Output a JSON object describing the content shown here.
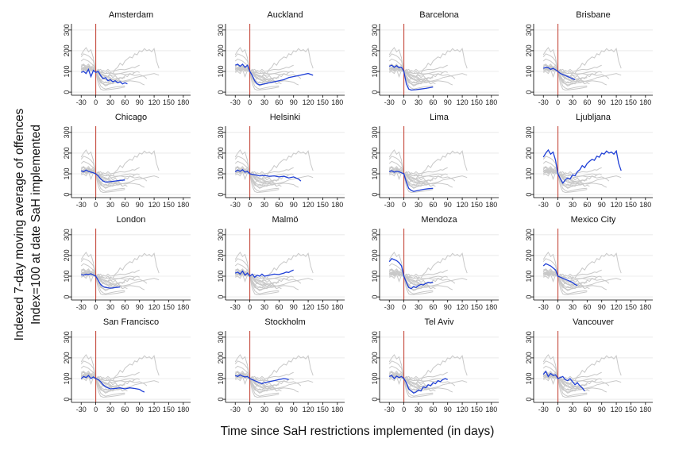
{
  "chart_data": {
    "type": "line",
    "layout": "small-multiples",
    "ylabel_lines": [
      "Indexed 7-day moving average of offences",
      "Index=100 at date SaH implemented"
    ],
    "xlabel": "Time since SaH restrictions implemented (in days)",
    "xlim": [
      -50,
      195
    ],
    "ylim": [
      -15,
      330
    ],
    "xticks": [
      -30,
      0,
      30,
      60,
      90,
      120,
      150,
      180
    ],
    "yticks": [
      0,
      100,
      200,
      300
    ],
    "ygrid": true,
    "vline_x": 0,
    "colors": {
      "highlight": "#1f3fd6",
      "background": "#c8c8c8",
      "vline": "#c0392b"
    },
    "cities": [
      {
        "name": "Amsterdam",
        "highlight": [
          [
            -30,
            95
          ],
          [
            -25,
            100
          ],
          [
            -20,
            90
          ],
          [
            -15,
            110
          ],
          [
            -10,
            75
          ],
          [
            -5,
            105
          ],
          [
            0,
            95
          ],
          [
            5,
            100
          ],
          [
            10,
            80
          ],
          [
            15,
            65
          ],
          [
            20,
            70
          ],
          [
            25,
            55
          ],
          [
            30,
            60
          ],
          [
            35,
            50
          ],
          [
            40,
            55
          ],
          [
            45,
            45
          ],
          [
            50,
            50
          ],
          [
            55,
            40
          ],
          [
            60,
            45
          ],
          [
            65,
            40
          ]
        ]
      },
      {
        "name": "Auckland",
        "highlight": [
          [
            -30,
            130
          ],
          [
            -25,
            135
          ],
          [
            -20,
            125
          ],
          [
            -15,
            135
          ],
          [
            -10,
            120
          ],
          [
            -5,
            130
          ],
          [
            0,
            100
          ],
          [
            5,
            80
          ],
          [
            10,
            55
          ],
          [
            15,
            40
          ],
          [
            20,
            35
          ],
          [
            30,
            40
          ],
          [
            40,
            45
          ],
          [
            50,
            50
          ],
          [
            60,
            55
          ],
          [
            70,
            60
          ],
          [
            80,
            70
          ],
          [
            90,
            75
          ],
          [
            100,
            80
          ],
          [
            110,
            85
          ],
          [
            120,
            90
          ],
          [
            130,
            82
          ]
        ]
      },
      {
        "name": "Barcelona",
        "highlight": [
          [
            -30,
            125
          ],
          [
            -25,
            130
          ],
          [
            -20,
            120
          ],
          [
            -15,
            128
          ],
          [
            -10,
            118
          ],
          [
            -5,
            120
          ],
          [
            0,
            100
          ],
          [
            5,
            40
          ],
          [
            10,
            15
          ],
          [
            15,
            10
          ],
          [
            25,
            12
          ],
          [
            35,
            15
          ],
          [
            45,
            18
          ],
          [
            55,
            22
          ],
          [
            60,
            25
          ]
        ]
      },
      {
        "name": "Brisbane",
        "highlight": [
          [
            -30,
            115
          ],
          [
            -25,
            120
          ],
          [
            -20,
            118
          ],
          [
            -15,
            110
          ],
          [
            -10,
            115
          ],
          [
            -5,
            108
          ],
          [
            0,
            100
          ],
          [
            5,
            90
          ],
          [
            10,
            85
          ],
          [
            15,
            80
          ],
          [
            20,
            75
          ],
          [
            25,
            70
          ],
          [
            30,
            65
          ],
          [
            35,
            60
          ]
        ]
      },
      {
        "name": "Chicago",
        "highlight": [
          [
            -30,
            115
          ],
          [
            -25,
            110
          ],
          [
            -20,
            118
          ],
          [
            -15,
            112
          ],
          [
            -10,
            108
          ],
          [
            -5,
            105
          ],
          [
            0,
            100
          ],
          [
            5,
            90
          ],
          [
            10,
            75
          ],
          [
            15,
            65
          ],
          [
            20,
            60
          ],
          [
            30,
            62
          ],
          [
            40,
            65
          ],
          [
            50,
            68
          ],
          [
            60,
            70
          ]
        ]
      },
      {
        "name": "Helsinki",
        "highlight": [
          [
            -30,
            110
          ],
          [
            -25,
            118
          ],
          [
            -20,
            112
          ],
          [
            -15,
            120
          ],
          [
            -10,
            108
          ],
          [
            -5,
            112
          ],
          [
            0,
            100
          ],
          [
            10,
            95
          ],
          [
            20,
            90
          ],
          [
            30,
            92
          ],
          [
            40,
            88
          ],
          [
            50,
            90
          ],
          [
            60,
            85
          ],
          [
            70,
            88
          ],
          [
            80,
            80
          ],
          [
            90,
            85
          ],
          [
            100,
            75
          ],
          [
            105,
            65
          ]
        ]
      },
      {
        "name": "Lima",
        "highlight": [
          [
            -30,
            110
          ],
          [
            -25,
            115
          ],
          [
            -20,
            108
          ],
          [
            -15,
            112
          ],
          [
            -10,
            110
          ],
          [
            -5,
            105
          ],
          [
            0,
            100
          ],
          [
            5,
            60
          ],
          [
            10,
            30
          ],
          [
            15,
            20
          ],
          [
            20,
            15
          ],
          [
            30,
            20
          ],
          [
            40,
            25
          ],
          [
            50,
            28
          ],
          [
            60,
            30
          ]
        ]
      },
      {
        "name": "Ljubljana",
        "highlight": [
          [
            -30,
            180
          ],
          [
            -25,
            200
          ],
          [
            -20,
            215
          ],
          [
            -15,
            195
          ],
          [
            -10,
            205
          ],
          [
            -5,
            165
          ],
          [
            0,
            100
          ],
          [
            5,
            75
          ],
          [
            10,
            55
          ],
          [
            15,
            70
          ],
          [
            20,
            80
          ],
          [
            25,
            75
          ],
          [
            30,
            95
          ],
          [
            35,
            90
          ],
          [
            40,
            110
          ],
          [
            45,
            120
          ],
          [
            50,
            140
          ],
          [
            55,
            130
          ],
          [
            60,
            150
          ],
          [
            65,
            160
          ],
          [
            70,
            170
          ],
          [
            75,
            165
          ],
          [
            80,
            185
          ],
          [
            85,
            180
          ],
          [
            90,
            200
          ],
          [
            95,
            195
          ],
          [
            100,
            210
          ],
          [
            105,
            200
          ],
          [
            110,
            205
          ],
          [
            115,
            195
          ],
          [
            120,
            210
          ],
          [
            125,
            150
          ],
          [
            130,
            115
          ]
        ]
      },
      {
        "name": "London",
        "highlight": [
          [
            -30,
            108
          ],
          [
            -25,
            105
          ],
          [
            -20,
            110
          ],
          [
            -15,
            108
          ],
          [
            -10,
            112
          ],
          [
            -5,
            106
          ],
          [
            0,
            100
          ],
          [
            5,
            80
          ],
          [
            10,
            60
          ],
          [
            15,
            50
          ],
          [
            20,
            45
          ],
          [
            30,
            42
          ],
          [
            40,
            45
          ],
          [
            50,
            48
          ]
        ]
      },
      {
        "name": "Malmö",
        "highlight": [
          [
            -30,
            115
          ],
          [
            -25,
            120
          ],
          [
            -20,
            110
          ],
          [
            -15,
            125
          ],
          [
            -10,
            105
          ],
          [
            -5,
            115
          ],
          [
            0,
            100
          ],
          [
            5,
            110
          ],
          [
            10,
            95
          ],
          [
            15,
            105
          ],
          [
            20,
            100
          ],
          [
            25,
            110
          ],
          [
            30,
            100
          ],
          [
            40,
            105
          ],
          [
            50,
            110
          ],
          [
            60,
            108
          ],
          [
            70,
            115
          ],
          [
            75,
            120
          ],
          [
            80,
            118
          ],
          [
            85,
            125
          ],
          [
            90,
            130
          ]
        ]
      },
      {
        "name": "Mendoza",
        "highlight": [
          [
            -30,
            170
          ],
          [
            -25,
            185
          ],
          [
            -20,
            180
          ],
          [
            -15,
            175
          ],
          [
            -10,
            165
          ],
          [
            -5,
            150
          ],
          [
            0,
            100
          ],
          [
            5,
            70
          ],
          [
            10,
            45
          ],
          [
            15,
            40
          ],
          [
            20,
            50
          ],
          [
            25,
            45
          ],
          [
            30,
            55
          ],
          [
            35,
            60
          ],
          [
            40,
            58
          ],
          [
            45,
            65
          ],
          [
            50,
            70
          ],
          [
            55,
            68
          ],
          [
            60,
            70
          ]
        ]
      },
      {
        "name": "Mexico City",
        "highlight": [
          [
            -30,
            150
          ],
          [
            -25,
            160
          ],
          [
            -20,
            155
          ],
          [
            -15,
            150
          ],
          [
            -10,
            140
          ],
          [
            -5,
            130
          ],
          [
            0,
            100
          ],
          [
            5,
            95
          ],
          [
            10,
            90
          ],
          [
            15,
            85
          ],
          [
            20,
            80
          ],
          [
            25,
            75
          ],
          [
            30,
            70
          ],
          [
            35,
            60
          ],
          [
            40,
            55
          ]
        ]
      },
      {
        "name": "San Francisco",
        "highlight": [
          [
            -30,
            100
          ],
          [
            -25,
            110
          ],
          [
            -20,
            105
          ],
          [
            -15,
            115
          ],
          [
            -10,
            100
          ],
          [
            -5,
            108
          ],
          [
            0,
            100
          ],
          [
            5,
            95
          ],
          [
            10,
            85
          ],
          [
            15,
            70
          ],
          [
            20,
            60
          ],
          [
            25,
            55
          ],
          [
            30,
            50
          ],
          [
            40,
            52
          ],
          [
            50,
            55
          ],
          [
            60,
            50
          ],
          [
            70,
            55
          ],
          [
            80,
            52
          ],
          [
            90,
            48
          ],
          [
            95,
            40
          ],
          [
            100,
            35
          ]
        ]
      },
      {
        "name": "Stockholm",
        "highlight": [
          [
            -30,
            115
          ],
          [
            -25,
            110
          ],
          [
            -20,
            118
          ],
          [
            -15,
            112
          ],
          [
            -10,
            108
          ],
          [
            -5,
            110
          ],
          [
            0,
            100
          ],
          [
            10,
            90
          ],
          [
            20,
            80
          ],
          [
            25,
            75
          ],
          [
            30,
            80
          ],
          [
            40,
            85
          ],
          [
            50,
            90
          ],
          [
            60,
            95
          ],
          [
            70,
            100
          ],
          [
            75,
            98
          ],
          [
            80,
            95
          ]
        ]
      },
      {
        "name": "Tel Aviv",
        "highlight": [
          [
            -30,
            110
          ],
          [
            -25,
            115
          ],
          [
            -20,
            100
          ],
          [
            -15,
            112
          ],
          [
            -10,
            105
          ],
          [
            -5,
            110
          ],
          [
            0,
            100
          ],
          [
            5,
            80
          ],
          [
            10,
            50
          ],
          [
            15,
            40
          ],
          [
            20,
            30
          ],
          [
            25,
            35
          ],
          [
            30,
            45
          ],
          [
            35,
            40
          ],
          [
            40,
            60
          ],
          [
            45,
            55
          ],
          [
            50,
            70
          ],
          [
            55,
            65
          ],
          [
            60,
            80
          ],
          [
            65,
            75
          ],
          [
            70,
            90
          ],
          [
            75,
            85
          ],
          [
            80,
            95
          ],
          [
            85,
            100
          ],
          [
            90,
            95
          ]
        ]
      },
      {
        "name": "Vancouver",
        "highlight": [
          [
            -30,
            120
          ],
          [
            -25,
            135
          ],
          [
            -20,
            110
          ],
          [
            -15,
            125
          ],
          [
            -10,
            115
          ],
          [
            -5,
            118
          ],
          [
            0,
            100
          ],
          [
            5,
            105
          ],
          [
            10,
            110
          ],
          [
            15,
            95
          ],
          [
            20,
            90
          ],
          [
            25,
            100
          ],
          [
            30,
            85
          ],
          [
            35,
            70
          ],
          [
            40,
            80
          ],
          [
            45,
            65
          ],
          [
            50,
            55
          ],
          [
            55,
            40
          ]
        ]
      }
    ]
  }
}
